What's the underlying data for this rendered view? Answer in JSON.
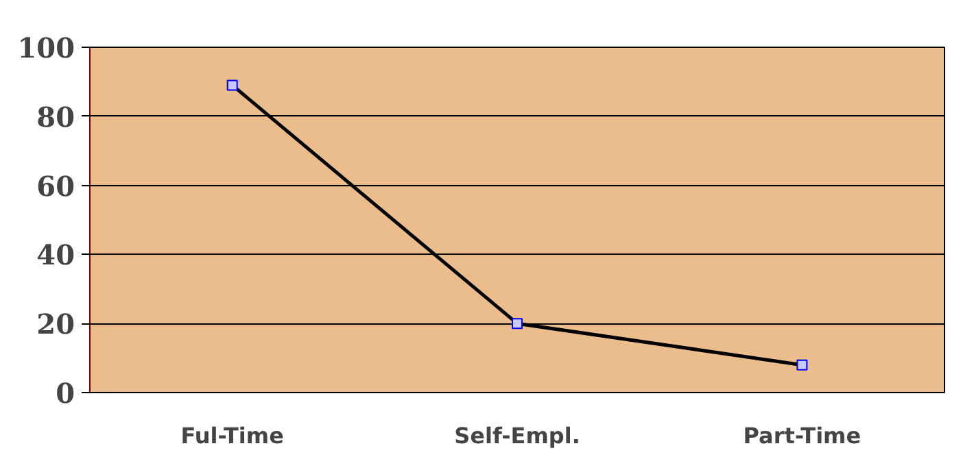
{
  "chart_data": {
    "type": "line",
    "categories": [
      "Ful-Time",
      "Self-Empl.",
      "Part-Time"
    ],
    "series": [
      {
        "color": "#000000",
        "values": [
          89,
          20,
          8
        ]
      }
    ],
    "ylim": [
      0,
      100
    ],
    "yticks": [
      0,
      20,
      40,
      60,
      80,
      100
    ],
    "grid": "y",
    "marker": "square",
    "line_style": "solid"
  }
}
